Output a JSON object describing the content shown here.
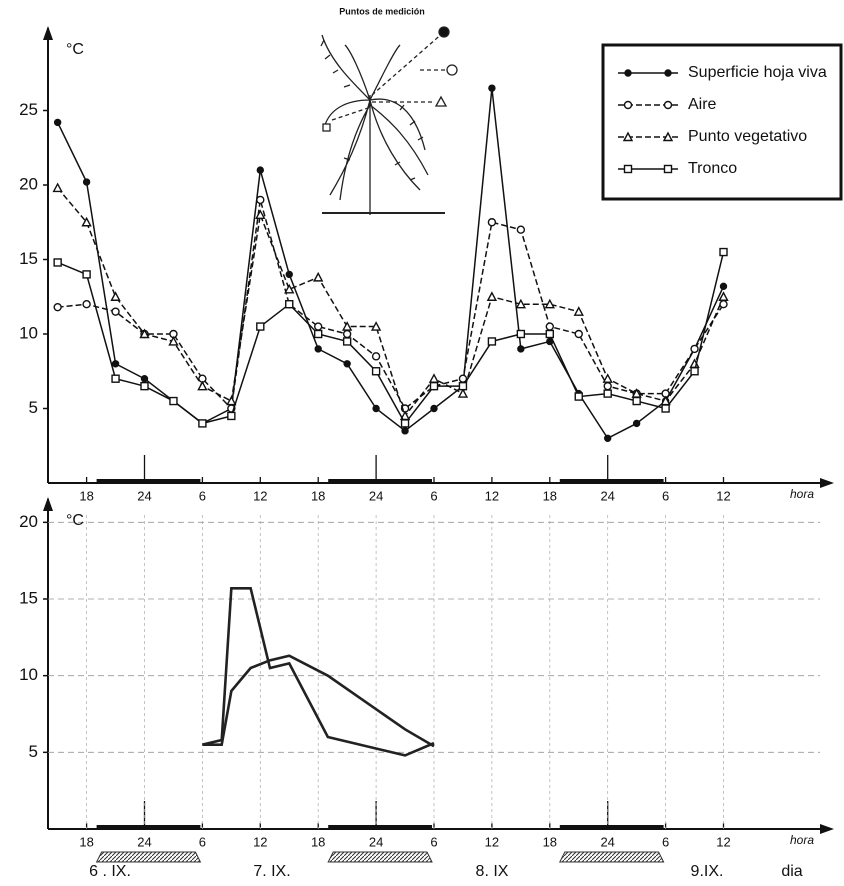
{
  "chart_data": [
    {
      "type": "line",
      "inset_title": "Puntos de medición",
      "y_label": "°C",
      "x_label": "hora",
      "xlim": [
        14,
        94
      ],
      "ylim": [
        0,
        30
      ],
      "xticks": [
        18,
        {
          "value": 24,
          "label": "24"
        },
        {
          "value": 30,
          "label": "6"
        },
        {
          "value": 36,
          "label": "12"
        },
        {
          "value": 42,
          "label": "18"
        },
        {
          "value": 48,
          "label": "24"
        },
        {
          "value": 54,
          "label": "6"
        },
        {
          "value": 60,
          "label": "12"
        },
        {
          "value": 66,
          "label": "18"
        },
        {
          "value": 72,
          "label": "24"
        },
        {
          "value": 78,
          "label": "6"
        },
        {
          "value": 84,
          "label": "12"
        }
      ],
      "yticks": [
        5,
        10,
        15,
        20,
        25
      ],
      "legend": "upper right",
      "x": [
        15,
        18,
        21,
        24,
        27,
        30,
        33,
        36,
        39,
        42,
        45,
        48,
        51,
        54,
        57,
        60,
        63,
        66,
        69,
        72,
        75,
        78,
        81,
        84
      ],
      "series": [
        {
          "name": "Superficie hoja viva",
          "color": "#111",
          "marker": "filled-circle",
          "dash": "solid",
          "values": [
            24.2,
            20.2,
            8,
            7,
            5.5,
            4,
            5,
            21,
            14,
            9,
            8,
            5,
            3.5,
            5,
            6.5,
            26.5,
            9,
            9.5,
            6,
            3,
            4,
            5.5,
            9,
            13.2
          ]
        },
        {
          "name": "Aire",
          "color": "#111",
          "marker": "open-circle",
          "dash": "dashed",
          "values": [
            11.8,
            12,
            11.5,
            10,
            10,
            7,
            5,
            19,
            12,
            10.5,
            10,
            8.5,
            5,
            6.5,
            7,
            17.5,
            17,
            10.5,
            10,
            6.5,
            6,
            6,
            9,
            12
          ]
        },
        {
          "name": "Punto vegetativo",
          "color": "#111",
          "marker": "triangle",
          "dash": "dashed",
          "values": [
            19.8,
            17.5,
            12.5,
            10,
            9.5,
            6.5,
            5.5,
            18,
            13,
            13.8,
            10.5,
            10.5,
            4.5,
            7,
            6,
            12.5,
            12,
            12,
            11.5,
            7,
            6,
            5.5,
            8,
            12.5
          ]
        },
        {
          "name": "Tronco",
          "color": "#111",
          "marker": "square",
          "dash": "solid",
          "values": [
            14.8,
            14,
            7,
            6.5,
            5.5,
            4,
            4.5,
            10.5,
            12,
            10,
            9.5,
            7.5,
            4,
            6.5,
            6.5,
            9.5,
            10,
            10,
            5.8,
            6,
            5.5,
            5,
            7.5,
            15.5
          ]
        }
      ]
    },
    {
      "type": "line",
      "y_label": "°C",
      "x_label": "hora",
      "day_axis_label": "dia",
      "day_labels": [
        "6 . IX.",
        "7. IX.",
        "8. IX",
        "9.IX."
      ],
      "xlim": [
        14,
        94
      ],
      "ylim": [
        0,
        21
      ],
      "grid": true,
      "xticks": [
        18,
        {
          "value": 24,
          "label": "24"
        },
        {
          "value": 30,
          "label": "6"
        },
        {
          "value": 36,
          "label": "12"
        },
        {
          "value": 42,
          "label": "18"
        },
        {
          "value": 48,
          "label": "24"
        },
        {
          "value": 54,
          "label": "6"
        },
        {
          "value": 60,
          "label": "12"
        },
        {
          "value": 66,
          "label": "18"
        },
        {
          "value": 72,
          "label": "24"
        },
        {
          "value": 78,
          "label": "6"
        },
        {
          "value": 84,
          "label": "12"
        }
      ],
      "yticks": [
        5,
        10,
        15,
        20
      ],
      "x": [
        30,
        32,
        33,
        35,
        37,
        39,
        43,
        51,
        54
      ],
      "series": [
        {
          "color": "#222",
          "values": [
            5.5,
            5.8,
            15.7,
            15.7,
            10.5,
            10.8,
            6,
            4.8,
            5.6
          ]
        },
        {
          "color": "#222",
          "values": [
            5.5,
            5.5,
            9,
            10.5,
            11,
            11.3,
            10,
            6.5,
            5.4
          ]
        }
      ]
    }
  ]
}
